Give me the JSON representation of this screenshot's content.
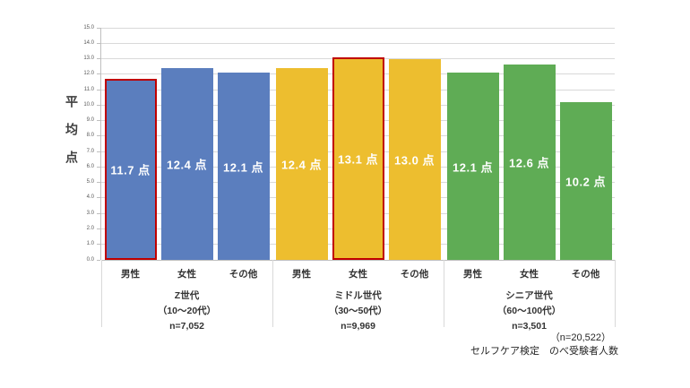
{
  "chart_data": {
    "type": "bar",
    "title": "",
    "ylabel": "平均点",
    "ylim": [
      0,
      15
    ],
    "ytick_step": 1.0,
    "yticks": [
      "15.0",
      "14.0",
      "13.0",
      "12.0",
      "11.0",
      "10.0",
      "9.0",
      "8.0",
      "7.0",
      "6.0",
      "5.0",
      "4.0",
      "3.0",
      "2.0",
      "1.0",
      "0.0"
    ],
    "unit_suffix": "点",
    "grid": "on",
    "legend": "none",
    "grid_color": "#D9D9D9",
    "highlight_color": "#C00000",
    "categories": [
      "男性",
      "女性",
      "その他"
    ],
    "groups": [
      {
        "name": "Z世代",
        "age_range": "（10～20代）",
        "n_label": "n=7,052",
        "color": "#5B7EBE",
        "values": [
          11.7,
          12.4,
          12.1
        ],
        "highlighted": [
          true,
          false,
          false
        ]
      },
      {
        "name": "ミドル世代",
        "age_range": "（30～50代）",
        "n_label": "n=9,969",
        "color": "#EDBE2F",
        "values": [
          12.4,
          13.1,
          13.0
        ],
        "highlighted": [
          false,
          true,
          false
        ]
      },
      {
        "name": "シニア世代",
        "age_range": "（60～100代）",
        "n_label": "n=3,501",
        "color": "#5FAC55",
        "values": [
          12.1,
          12.6,
          10.2
        ],
        "highlighted": [
          false,
          false,
          false
        ]
      }
    ],
    "annotation": {
      "line1": "（n=20,522）",
      "line2": "セルフケア検定　のべ受験者人数"
    }
  }
}
